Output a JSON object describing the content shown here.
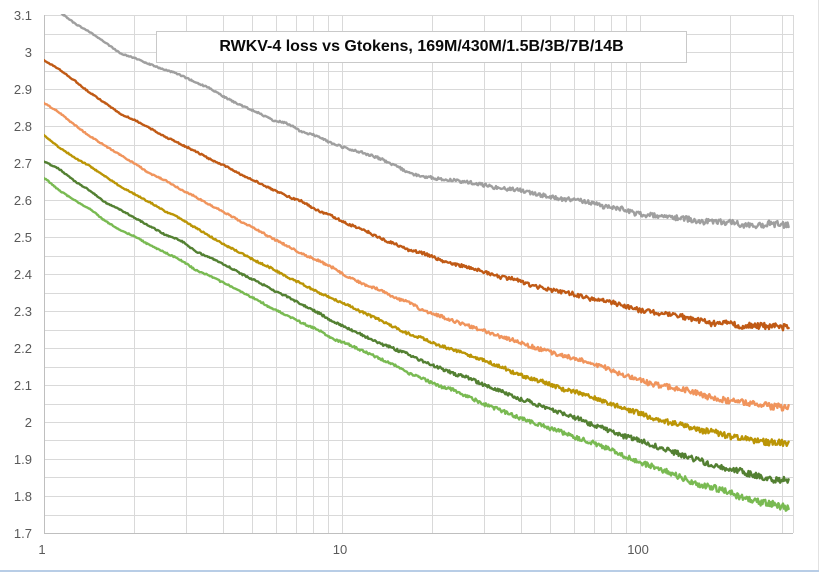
{
  "colors": {
    "background": "#ffffff",
    "gridline": "#d9d9d9",
    "axis_line": "#bfbfbf",
    "tick_label": "#595959",
    "title_text": "#0a0a0a",
    "title_border": "#c9c9c9",
    "sheet_bottom_line": "#b8cde6"
  },
  "chart_data": {
    "type": "line",
    "title": "RWKV-4 loss vs Gtokens, 169M/430M/1.5B/3B/7B/14B",
    "xlabel": "",
    "ylabel": "",
    "x_scale": "log",
    "xlim": [
      1,
      326
    ],
    "ylim": [
      1.7,
      3.1
    ],
    "grid": true,
    "legend_position": "none",
    "y_ticks": [
      {
        "label": "3.1",
        "value": 3.1
      },
      {
        "label": "3",
        "value": 3.0
      },
      {
        "label": "2.9",
        "value": 2.9
      },
      {
        "label": "2.8",
        "value": 2.8
      },
      {
        "label": "2.7",
        "value": 2.7
      },
      {
        "label": "2.6",
        "value": 2.6
      },
      {
        "label": "2.5",
        "value": 2.5
      },
      {
        "label": "2.4",
        "value": 2.4
      },
      {
        "label": "2.3",
        "value": 2.3
      },
      {
        "label": "2.2",
        "value": 2.2
      },
      {
        "label": "2.1",
        "value": 2.1
      },
      {
        "label": "2",
        "value": 2.0
      },
      {
        "label": "1.9",
        "value": 1.9
      },
      {
        "label": "1.8",
        "value": 1.8
      },
      {
        "label": "1.7",
        "value": 1.7
      }
    ],
    "y_minor_step": 0.05,
    "x_ticks": [
      {
        "label": "1",
        "value": 1
      },
      {
        "label": "10",
        "value": 10
      },
      {
        "label": "100",
        "value": 100
      }
    ],
    "series": [
      {
        "name": "169M",
        "color": "#9f9f9f",
        "points": [
          [
            1,
            3.135
          ],
          [
            1.35,
            3.065
          ],
          [
            1.8,
            3.0
          ],
          [
            2.2,
            2.972
          ],
          [
            2.73,
            2.947
          ],
          [
            3.3,
            2.915
          ],
          [
            4,
            2.88
          ],
          [
            5,
            2.843
          ],
          [
            6,
            2.815
          ],
          [
            8,
            2.775
          ],
          [
            10,
            2.745
          ],
          [
            12,
            2.722
          ],
          [
            14,
            2.705
          ],
          [
            15.5,
            2.69
          ],
          [
            17,
            2.674
          ],
          [
            19,
            2.665
          ],
          [
            22,
            2.657
          ],
          [
            26,
            2.648
          ],
          [
            30,
            2.64
          ],
          [
            38,
            2.626
          ],
          [
            48,
            2.613
          ],
          [
            60,
            2.6
          ],
          [
            75,
            2.585
          ],
          [
            100,
            2.563
          ],
          [
            130,
            2.549
          ],
          [
            170,
            2.541
          ],
          [
            220,
            2.536
          ],
          [
            270,
            2.533
          ],
          [
            315,
            2.532
          ]
        ]
      },
      {
        "name": "430M",
        "color": "#c05a15",
        "points": [
          [
            1,
            2.98
          ],
          [
            1.35,
            2.905
          ],
          [
            1.8,
            2.835
          ],
          [
            2.2,
            2.8
          ],
          [
            2.73,
            2.763
          ],
          [
            3.3,
            2.728
          ],
          [
            4,
            2.695
          ],
          [
            5,
            2.658
          ],
          [
            6,
            2.627
          ],
          [
            8,
            2.578
          ],
          [
            10,
            2.542
          ],
          [
            12,
            2.515
          ],
          [
            14,
            2.492
          ],
          [
            17,
            2.466
          ],
          [
            20,
            2.447
          ],
          [
            24,
            2.427
          ],
          [
            30,
            2.405
          ],
          [
            38,
            2.383
          ],
          [
            48,
            2.363
          ],
          [
            60,
            2.345
          ],
          [
            75,
            2.328
          ],
          [
            100,
            2.302
          ],
          [
            130,
            2.285
          ],
          [
            170,
            2.271
          ],
          [
            220,
            2.262
          ],
          [
            270,
            2.258
          ],
          [
            315,
            2.257
          ]
        ]
      },
      {
        "name": "1.5B",
        "color": "#f0945c",
        "points": [
          [
            1,
            2.862
          ],
          [
            1.35,
            2.788
          ],
          [
            1.8,
            2.72
          ],
          [
            2.2,
            2.68
          ],
          [
            2.73,
            2.642
          ],
          [
            3.3,
            2.603
          ],
          [
            4,
            2.567
          ],
          [
            5,
            2.526
          ],
          [
            6,
            2.493
          ],
          [
            8,
            2.441
          ],
          [
            10,
            2.402
          ],
          [
            12,
            2.372
          ],
          [
            14,
            2.348
          ],
          [
            17,
            2.318
          ],
          [
            20,
            2.296
          ],
          [
            24,
            2.272
          ],
          [
            30,
            2.245
          ],
          [
            38,
            2.218
          ],
          [
            48,
            2.193
          ],
          [
            60,
            2.17
          ],
          [
            75,
            2.148
          ],
          [
            100,
            2.115
          ],
          [
            130,
            2.09
          ],
          [
            170,
            2.068
          ],
          [
            220,
            2.052
          ],
          [
            270,
            2.043
          ],
          [
            315,
            2.039
          ]
        ]
      },
      {
        "name": "3B",
        "color": "#bb9506",
        "points": [
          [
            1,
            2.772
          ],
          [
            1.35,
            2.7
          ],
          [
            1.8,
            2.635
          ],
          [
            2.2,
            2.596
          ],
          [
            2.73,
            2.558
          ],
          [
            3.3,
            2.52
          ],
          [
            4,
            2.483
          ],
          [
            5,
            2.443
          ],
          [
            6,
            2.41
          ],
          [
            8,
            2.359
          ],
          [
            10,
            2.322
          ],
          [
            12,
            2.292
          ],
          [
            14,
            2.268
          ],
          [
            17,
            2.238
          ],
          [
            20,
            2.216
          ],
          [
            24,
            2.192
          ],
          [
            30,
            2.163
          ],
          [
            38,
            2.134
          ],
          [
            48,
            2.107
          ],
          [
            60,
            2.082
          ],
          [
            75,
            2.058
          ],
          [
            100,
            2.022
          ],
          [
            130,
            1.996
          ],
          [
            170,
            1.973
          ],
          [
            220,
            1.956
          ],
          [
            270,
            1.946
          ],
          [
            315,
            1.941
          ]
        ]
      },
      {
        "name": "7B",
        "color": "#538032",
        "points": [
          [
            1,
            2.708
          ],
          [
            1.35,
            2.636
          ],
          [
            1.8,
            2.572
          ],
          [
            2.2,
            2.534
          ],
          [
            2.73,
            2.497
          ],
          [
            3.3,
            2.46
          ],
          [
            4,
            2.424
          ],
          [
            5,
            2.385
          ],
          [
            6,
            2.352
          ],
          [
            8,
            2.3
          ],
          [
            10,
            2.263
          ],
          [
            12,
            2.233
          ],
          [
            14,
            2.208
          ],
          [
            17,
            2.178
          ],
          [
            20,
            2.155
          ],
          [
            24,
            2.13
          ],
          [
            30,
            2.1
          ],
          [
            38,
            2.07
          ],
          [
            48,
            2.04
          ],
          [
            60,
            2.012
          ],
          [
            75,
            1.986
          ],
          [
            100,
            1.947
          ],
          [
            130,
            1.917
          ],
          [
            170,
            1.889
          ],
          [
            220,
            1.866
          ],
          [
            270,
            1.85
          ],
          [
            315,
            1.842
          ]
        ]
      },
      {
        "name": "14B",
        "color": "#79ba52",
        "points": [
          [
            1,
            2.658
          ],
          [
            1.35,
            2.585
          ],
          [
            1.8,
            2.52
          ],
          [
            2.2,
            2.483
          ],
          [
            2.73,
            2.446
          ],
          [
            3.3,
            2.41
          ],
          [
            4,
            2.374
          ],
          [
            5,
            2.335
          ],
          [
            6,
            2.303
          ],
          [
            8,
            2.253
          ],
          [
            10,
            2.217
          ],
          [
            12,
            2.188
          ],
          [
            14,
            2.163
          ],
          [
            17,
            2.132
          ],
          [
            20,
            2.108
          ],
          [
            24,
            2.082
          ],
          [
            30,
            2.051
          ],
          [
            38,
            2.019
          ],
          [
            48,
            1.988
          ],
          [
            60,
            1.96
          ],
          [
            75,
            1.932
          ],
          [
            100,
            1.889
          ],
          [
            130,
            1.856
          ],
          [
            170,
            1.824
          ],
          [
            220,
            1.797
          ],
          [
            270,
            1.777
          ],
          [
            315,
            1.765
          ]
        ]
      }
    ]
  }
}
